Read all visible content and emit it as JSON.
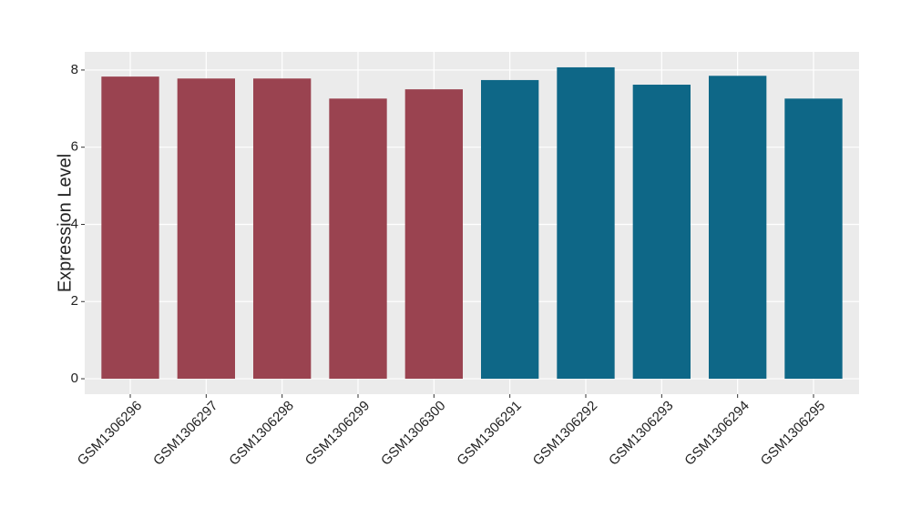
{
  "chart_data": {
    "type": "bar",
    "y_label": "Expression Level",
    "categories": [
      "GSM1306296",
      "GSM1306297",
      "GSM1306298",
      "GSM1306299",
      "GSM1306300",
      "GSM1306291",
      "GSM1306292",
      "GSM1306293",
      "GSM1306294",
      "GSM1306295"
    ],
    "values": [
      7.83,
      7.78,
      7.78,
      7.26,
      7.5,
      7.74,
      8.07,
      7.62,
      7.85,
      7.26
    ],
    "colors": [
      "#9a4350",
      "#9a4350",
      "#9a4350",
      "#9a4350",
      "#9a4350",
      "#0e6787",
      "#0e6787",
      "#0e6787",
      "#0e6787",
      "#0e6787"
    ],
    "ylim": [
      -0.4,
      8.47
    ],
    "yticks": [
      0,
      2,
      4,
      6,
      8
    ],
    "grid": true
  }
}
